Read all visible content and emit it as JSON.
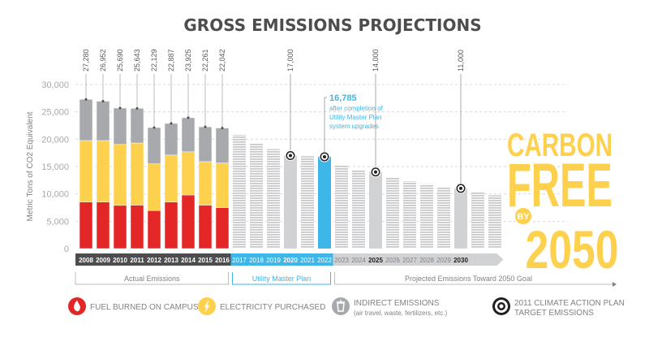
{
  "chart_data": {
    "type": "bar",
    "title": "GROSS EMISSIONS PROJECTIONS",
    "ylabel": "Metric Tons of CO2 Equivalent",
    "ylim": [
      0,
      30000
    ],
    "yticks": [
      "0",
      "5,000",
      "10,000",
      "15,000",
      "20,000",
      "25,000",
      "30,000"
    ],
    "grid": true,
    "colors": {
      "fuel": "#e32726",
      "electricity": "#fdd04e",
      "indirect": "#a7a9ac",
      "utility": "#3fb6e8",
      "projection": "#d1d2d4",
      "dark": "#4d4d4f",
      "carbon": "#fdd04e"
    },
    "actual": {
      "categories": [
        "2008",
        "2009",
        "2010",
        "2011",
        "2012",
        "2013",
        "2014",
        "2015",
        "2016"
      ],
      "totals_labels": [
        "27,280",
        "26,952",
        "25,690",
        "25,643",
        "22,129",
        "22,887",
        "23,925",
        "22,261",
        "22,042"
      ],
      "series": [
        {
          "name": "FUEL BURNED ON CAMPUS",
          "values": [
            8500,
            8500,
            7900,
            7950,
            6950,
            8500,
            9800,
            7950,
            7500
          ]
        },
        {
          "name": "ELECTRICITY PURCHASED",
          "values": [
            11250,
            11250,
            11150,
            11350,
            8550,
            8600,
            7900,
            7950,
            8150
          ]
        },
        {
          "name": "INDIRECT EMISSIONS",
          "values": [
            7530,
            7202,
            6640,
            6343,
            6629,
            5787,
            6225,
            6361,
            6392
          ]
        }
      ],
      "totals": [
        27280,
        26952,
        25690,
        25643,
        22129,
        22887,
        23925,
        22261,
        22042
      ]
    },
    "projected": {
      "categories": [
        "2017",
        "2018",
        "2019",
        "2020",
        "2021",
        "2022",
        "2023",
        "2024",
        "2025",
        "2026",
        "2027",
        "2028",
        "2029",
        "2030",
        "",
        ""
      ],
      "values": [
        20800,
        19300,
        18200,
        17000,
        16900,
        16785,
        15300,
        14300,
        14000,
        13000,
        12300,
        11800,
        11200,
        11000,
        10300,
        9750
      ],
      "bold_years": [
        "2020",
        "2025",
        "2030"
      ],
      "targets": [
        {
          "year": "2020",
          "label": "17,000"
        },
        {
          "year": "2025",
          "label": "14,000"
        },
        {
          "year": "2030",
          "label": "11,000"
        }
      ],
      "utility_years": [
        "2017",
        "2018",
        "2019",
        "2020",
        "2021",
        "2022"
      ],
      "highlight": {
        "year": "2022",
        "value_label": "16,785",
        "note": [
          "after completion of",
          "Utility Master Plan",
          "system upgrades"
        ]
      }
    },
    "periods": [
      "Actual Emissions",
      "Utility Master Plan",
      "Projected Emissions Toward 2050 Goal"
    ],
    "goal": {
      "line1": "CARBON",
      "line2": "FREE",
      "by": "BY",
      "year": "2050"
    },
    "legend": [
      {
        "icon": "flame-icon",
        "label": "FUEL BURNED ON CAMPUS",
        "sub": ""
      },
      {
        "icon": "lightning-icon",
        "label": "ELECTRICITY PURCHASED",
        "sub": ""
      },
      {
        "icon": "trash-can-icon",
        "label": "INDIRECT EMISSIONS",
        "sub": "(air travel, waste, fertilizers, etc.)"
      },
      {
        "icon": "target-icon",
        "label": "2011 CLIMATE ACTION PLAN",
        "sub": "TARGET EMISSIONS"
      }
    ]
  }
}
